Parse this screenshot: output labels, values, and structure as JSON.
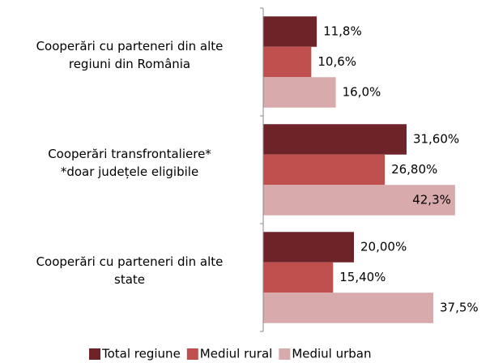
{
  "chart_data": {
    "type": "bar",
    "orientation": "horizontal",
    "categories": [
      [
        "Cooperări cu parteneri din alte",
        "regiuni din România"
      ],
      [
        "Cooperări transfrontaliere*",
        "*doar județele eligibile"
      ],
      [
        "Cooperări cu parteneri din alte",
        "state"
      ]
    ],
    "series": [
      {
        "name": "Total regiune",
        "color": "#6e2329",
        "values": [
          11.8,
          31.6,
          20.0
        ],
        "value_labels": [
          "11,8%",
          "31,60%",
          "20,00%"
        ]
      },
      {
        "name": "Mediul rural",
        "color": "#c0504d",
        "values": [
          10.6,
          26.8,
          15.4
        ],
        "value_labels": [
          "10,6%",
          "26,80%",
          "15,40%"
        ]
      },
      {
        "name": "Mediul urban",
        "color": "#d9aaab",
        "values": [
          16.0,
          42.3,
          37.5
        ],
        "value_labels": [
          "16,0%",
          "42,3%",
          "37,5%"
        ]
      }
    ],
    "xlim": [
      0,
      50
    ],
    "legend": "bottom"
  }
}
